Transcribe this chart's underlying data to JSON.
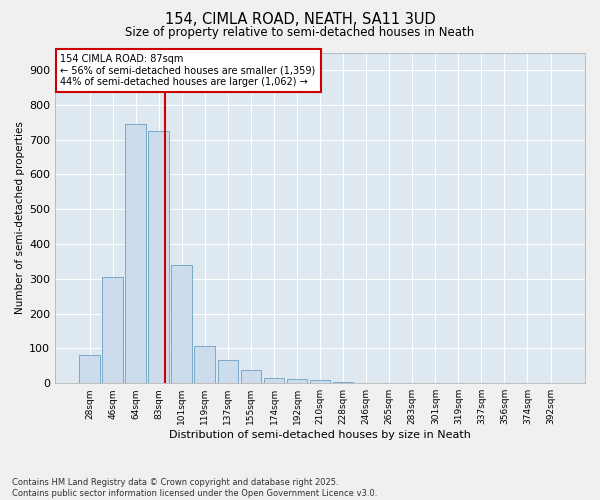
{
  "title1": "154, CIMLA ROAD, NEATH, SA11 3UD",
  "title2": "Size of property relative to semi-detached houses in Neath",
  "xlabel": "Distribution of semi-detached houses by size in Neath",
  "ylabel": "Number of semi-detached properties",
  "bar_labels": [
    "28sqm",
    "46sqm",
    "64sqm",
    "83sqm",
    "101sqm",
    "119sqm",
    "137sqm",
    "155sqm",
    "174sqm",
    "192sqm",
    "210sqm",
    "228sqm",
    "246sqm",
    "265sqm",
    "283sqm",
    "301sqm",
    "319sqm",
    "337sqm",
    "356sqm",
    "374sqm",
    "392sqm"
  ],
  "bar_values": [
    80,
    305,
    745,
    725,
    340,
    108,
    68,
    38,
    15,
    12,
    8,
    4,
    1,
    0,
    0,
    0,
    0,
    0,
    0,
    0,
    0
  ],
  "bar_color": "#ccdcec",
  "bar_edgecolor": "#7aaac8",
  "fig_bg_color": "#f0f0f0",
  "ax_bg_color": "#dde8f0",
  "grid_color": "#ffffff",
  "annotation_text": "154 CIMLA ROAD: 87sqm\n← 56% of semi-detached houses are smaller (1,359)\n44% of semi-detached houses are larger (1,062) →",
  "annotation_box_color": "#ffffff",
  "annotation_box_edgecolor": "#cc0000",
  "vline_color": "#cc0000",
  "ylim": [
    0,
    950
  ],
  "yticks": [
    0,
    100,
    200,
    300,
    400,
    500,
    600,
    700,
    800,
    900
  ],
  "footer1": "Contains HM Land Registry data © Crown copyright and database right 2025.",
  "footer2": "Contains public sector information licensed under the Open Government Licence v3.0."
}
